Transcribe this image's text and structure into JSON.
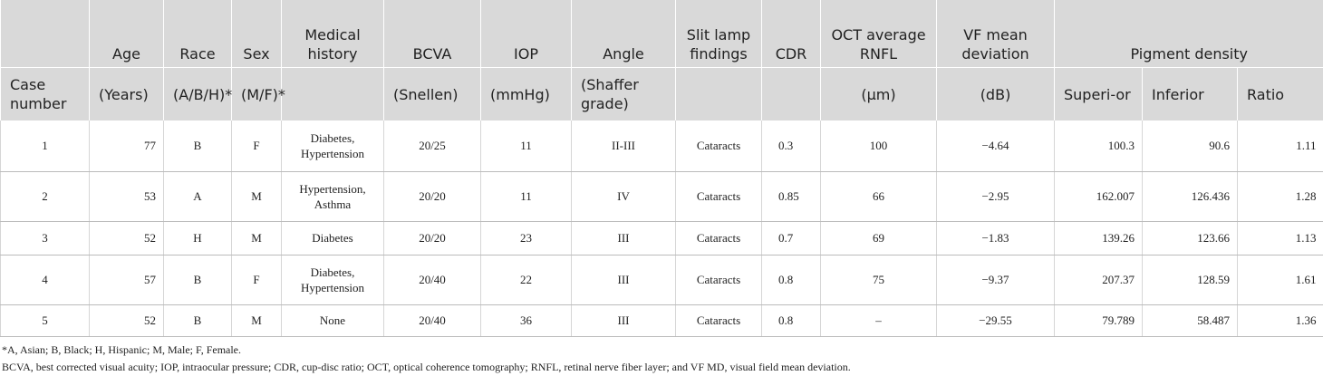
{
  "table": {
    "header_row_1": [
      "Age",
      "Race",
      "Sex",
      "Medical history",
      "BCVA",
      "IOP",
      "Angle",
      "Slit lamp findings",
      "CDR",
      "OCT average RNFL",
      "VF mean deviation",
      "Pigment density"
    ],
    "header_row_2": [
      "Case number",
      "(Years)",
      "(A/B/H)*",
      "(M/F)*",
      "(Snellen)",
      "(mmHg)",
      "(Shaffer grade)",
      "(μm)",
      "(dB)",
      "Superi-or",
      "Inferior",
      "Ratio"
    ],
    "rows": [
      [
        "1",
        "77",
        "B",
        "F",
        "Diabetes, Hypertension",
        "20/25",
        "11",
        "II-III",
        "Cataracts",
        "0.3",
        "100",
        "−4.64",
        "100.3",
        "90.6",
        "1.11"
      ],
      [
        "2",
        "53",
        "A",
        "M",
        "Hypertension, Asthma",
        "20/20",
        "11",
        "IV",
        "Cataracts",
        "0.85",
        "66",
        "−2.95",
        "162.007",
        "126.436",
        "1.28"
      ],
      [
        "3",
        "52",
        "H",
        "M",
        "Diabetes",
        "20/20",
        "23",
        "III",
        "Cataracts",
        "0.7",
        "69",
        "−1.83",
        "139.26",
        "123.66",
        "1.13"
      ],
      [
        "4",
        "57",
        "B",
        "F",
        "Diabetes, Hypertension",
        "20/40",
        "22",
        "III",
        "Cataracts",
        "0.8",
        "75",
        "−9.37",
        "207.37",
        "128.59",
        "1.61"
      ],
      [
        "5",
        "52",
        "B",
        "M",
        "None",
        "20/40",
        "36",
        "III",
        "Cataracts",
        "0.8",
        "–",
        "−29.55",
        "79.789",
        "58.487",
        "1.36"
      ]
    ]
  },
  "footnotes": [
    "*A, Asian; B, Black; H, Hispanic; M, Male; F, Female.",
    "BCVA, best corrected visual acuity; IOP, intraocular pressure; CDR, cup-disc ratio; OCT, optical coherence tomography; RNFL, retinal nerve fiber layer; and VF MD, visual field mean deviation."
  ]
}
